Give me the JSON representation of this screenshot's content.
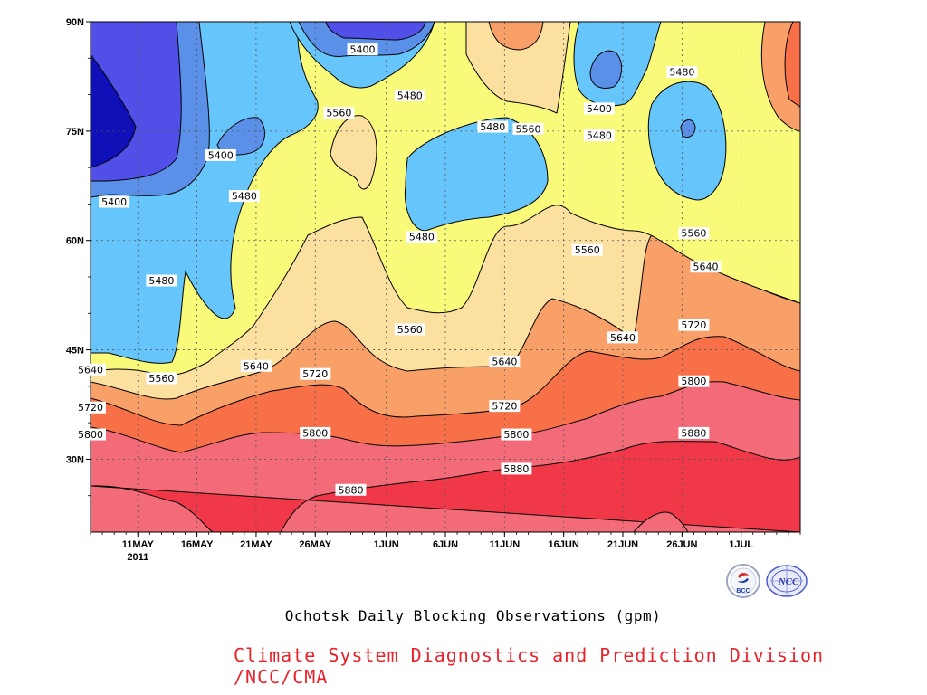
{
  "chart_data": {
    "type": "contour",
    "title": "Ochotsk Daily Blocking Observations (gpm)",
    "x_axis": {
      "ticks": [
        "11MAY",
        "16MAY",
        "21MAY",
        "26MAY",
        "1JUN",
        "6JUN",
        "11JUN",
        "16JUN",
        "21JUN",
        "26JUN",
        "1JUL"
      ],
      "year_label": "2011",
      "range": [
        "2011-05-07",
        "2011-07-06"
      ]
    },
    "y_axis": {
      "ticks": [
        "90N",
        "75N",
        "60N",
        "45N",
        "30N"
      ],
      "values": [
        90,
        75,
        60,
        45,
        30
      ],
      "range": [
        20,
        90
      ]
    },
    "grid": true,
    "levels": [
      5400,
      5480,
      5560,
      5640,
      5720,
      5800,
      5880
    ],
    "fill_colors": {
      "below_5320": "#1010b8",
      "5320_5400": "#5050e8",
      "5400_5480": "#5a90e8",
      "5480_5560": "#66c5fa",
      "5560_5640": "#fafa7a",
      "5640_5720": "#fbe0a0",
      "5720_5800": "#f8a068",
      "5800_5880": "#f87048",
      "5880_5960": "#f36a78",
      "above_5960": "#f03848"
    },
    "contour_labels": [
      {
        "value": "5400",
        "date": "2011-05-09",
        "lat": 65.3
      },
      {
        "value": "5400",
        "date": "2011-05-18",
        "lat": 71.7
      },
      {
        "value": "5400",
        "date": "2011-05-30",
        "lat": 86.2
      },
      {
        "value": "5400",
        "date": "2011-06-19",
        "lat": 78.1
      },
      {
        "value": "5480",
        "date": "2011-05-13",
        "lat": 54.5
      },
      {
        "value": "5480",
        "date": "2011-05-20",
        "lat": 66.1
      },
      {
        "value": "5480",
        "date": "2011-06-03",
        "lat": 79.9
      },
      {
        "value": "5480",
        "date": "2011-06-10",
        "lat": 75.6
      },
      {
        "value": "5480",
        "date": "2011-06-04",
        "lat": 60.5
      },
      {
        "value": "5480",
        "date": "2011-06-19",
        "lat": 74.4
      },
      {
        "value": "5480",
        "date": "2011-06-26",
        "lat": 83.1
      },
      {
        "value": "5560",
        "date": "2011-05-28",
        "lat": 77.5
      },
      {
        "value": "5560",
        "date": "2011-06-13",
        "lat": 75.3
      },
      {
        "value": "5560",
        "date": "2011-06-18",
        "lat": 58.7
      },
      {
        "value": "5560",
        "date": "2011-06-27",
        "lat": 61.0
      },
      {
        "value": "5560",
        "date": "2011-06-03",
        "lat": 47.8
      },
      {
        "value": "5560",
        "date": "2011-05-13",
        "lat": 41.1
      },
      {
        "value": "5640",
        "date": "2011-05-07",
        "lat": 42.3
      },
      {
        "value": "5640",
        "date": "2011-05-21",
        "lat": 42.8
      },
      {
        "value": "5640",
        "date": "2011-06-11",
        "lat": 43.4
      },
      {
        "value": "5640",
        "date": "2011-06-21",
        "lat": 46.7
      },
      {
        "value": "5640",
        "date": "2011-06-28",
        "lat": 56.4
      },
      {
        "value": "5720",
        "date": "2011-05-07",
        "lat": 37.1
      },
      {
        "value": "5720",
        "date": "2011-05-26",
        "lat": 41.7
      },
      {
        "value": "5720",
        "date": "2011-06-11",
        "lat": 37.3
      },
      {
        "value": "5720",
        "date": "2011-06-27",
        "lat": 48.4
      },
      {
        "value": "5800",
        "date": "2011-05-07",
        "lat": 33.4
      },
      {
        "value": "5800",
        "date": "2011-05-26",
        "lat": 33.6
      },
      {
        "value": "5800",
        "date": "2011-06-12",
        "lat": 33.4
      },
      {
        "value": "5800",
        "date": "2011-06-27",
        "lat": 40.7
      },
      {
        "value": "5880",
        "date": "2011-05-29",
        "lat": 25.8
      },
      {
        "value": "5880",
        "date": "2011-06-12",
        "lat": 28.7
      },
      {
        "value": "5880",
        "date": "2011-06-27",
        "lat": 33.6
      }
    ]
  },
  "footer": {
    "title": "Ochotsk Daily Blocking Observations (gpm)",
    "credit": "Climate System Diagnostics and Prediction Division /NCC/CMA",
    "logo_left_text": "BCC",
    "logo_right_text": "NCC"
  }
}
